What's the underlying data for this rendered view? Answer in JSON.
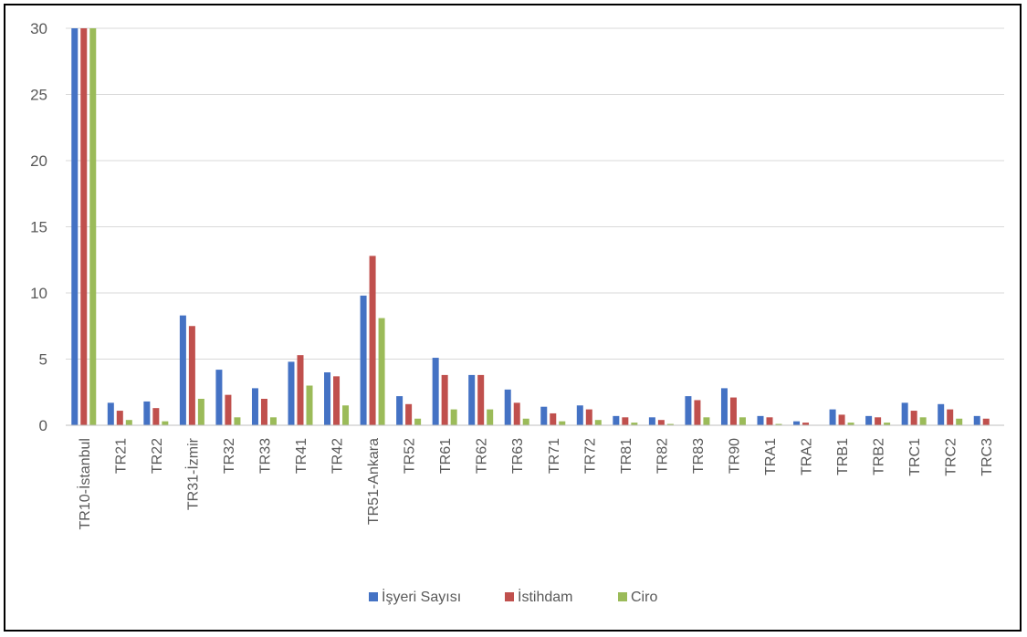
{
  "chart_data": {
    "type": "bar",
    "title": "",
    "xlabel": "",
    "ylabel": "",
    "ylim": [
      0,
      30
    ],
    "yticks": [
      0,
      5,
      10,
      15,
      20,
      25,
      30
    ],
    "grid": true,
    "legend_position": "bottom",
    "categories": [
      "TR10-İstanbul",
      "TR21",
      "TR22",
      "TR31-İzmir",
      "TR32",
      "TR33",
      "TR41",
      "TR42",
      "TR51-Ankara",
      "TR52",
      "TR61",
      "TR62",
      "TR63",
      "TR71",
      "TR72",
      "TR81",
      "TR82",
      "TR83",
      "TR90",
      "TRA1",
      "TRA2",
      "TRB1",
      "TRB2",
      "TRC1",
      "TRC2",
      "TRC3"
    ],
    "series": [
      {
        "name": "İşyeri Sayısı",
        "color": "#4472C4",
        "values": [
          30,
          1.7,
          1.8,
          8.3,
          4.2,
          2.8,
          4.8,
          4.0,
          9.8,
          2.2,
          5.1,
          3.8,
          2.7,
          1.4,
          1.5,
          0.7,
          0.6,
          2.2,
          2.8,
          0.7,
          0.3,
          1.2,
          0.7,
          1.7,
          1.6,
          0.7
        ]
      },
      {
        "name": "İstihdam",
        "color": "#C0504D",
        "values": [
          30,
          1.1,
          1.3,
          7.5,
          2.3,
          2.0,
          5.3,
          3.7,
          12.8,
          1.6,
          3.8,
          3.8,
          1.7,
          0.9,
          1.2,
          0.6,
          0.4,
          1.9,
          2.1,
          0.6,
          0.2,
          0.8,
          0.6,
          1.1,
          1.2,
          0.5
        ]
      },
      {
        "name": "Ciro",
        "color": "#9BBB59",
        "values": [
          30,
          0.4,
          0.3,
          2.0,
          0.6,
          0.6,
          3.0,
          1.5,
          8.1,
          0.5,
          1.2,
          1.2,
          0.5,
          0.3,
          0.4,
          0.2,
          0.1,
          0.6,
          0.6,
          0.1,
          0.0,
          0.2,
          0.2,
          0.6,
          0.5,
          0.0
        ]
      }
    ]
  }
}
